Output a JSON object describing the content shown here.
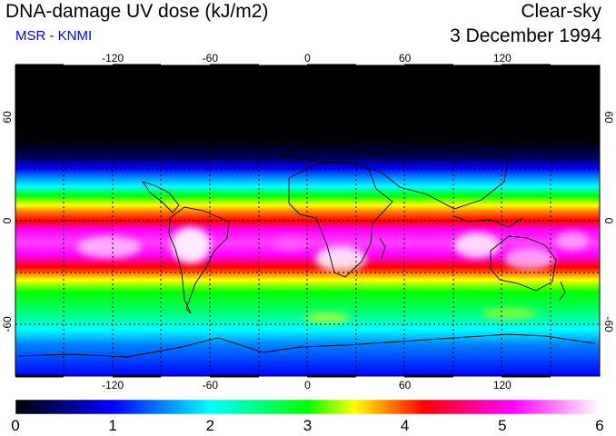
{
  "header": {
    "title": "DNA-damage UV dose (kJ/m2)",
    "subtitle": "MSR - KNMI",
    "sky_condition": "Clear-sky",
    "date": "3 December 1994"
  },
  "map": {
    "projection": "equirectangular",
    "lon_ticks": [
      "-120",
      "-60",
      "0",
      "60",
      "120"
    ],
    "lat_ticks": [
      "60",
      "0",
      "-60"
    ],
    "lon_values": [
      -120,
      -60,
      0,
      60,
      120
    ],
    "lat_values": [
      60,
      0,
      -60
    ],
    "lon_range": [
      -180,
      180
    ],
    "lat_range": [
      -90,
      90
    ],
    "grid_style": "dotted",
    "gridline_spacing_deg": 30
  },
  "colorbar": {
    "labels": [
      "0",
      "1",
      "2",
      "3",
      "4",
      "5",
      "6"
    ],
    "min": 0,
    "max": 6,
    "colors": [
      "#000000",
      "#0000ff",
      "#00ffff",
      "#00ff00",
      "#ffff00",
      "#ff0000",
      "#ff00ff",
      "#ffffff"
    ]
  },
  "colors": {
    "subtitle": "#0000ff",
    "polar_night": "#000000",
    "land_outline": "#000000"
  }
}
